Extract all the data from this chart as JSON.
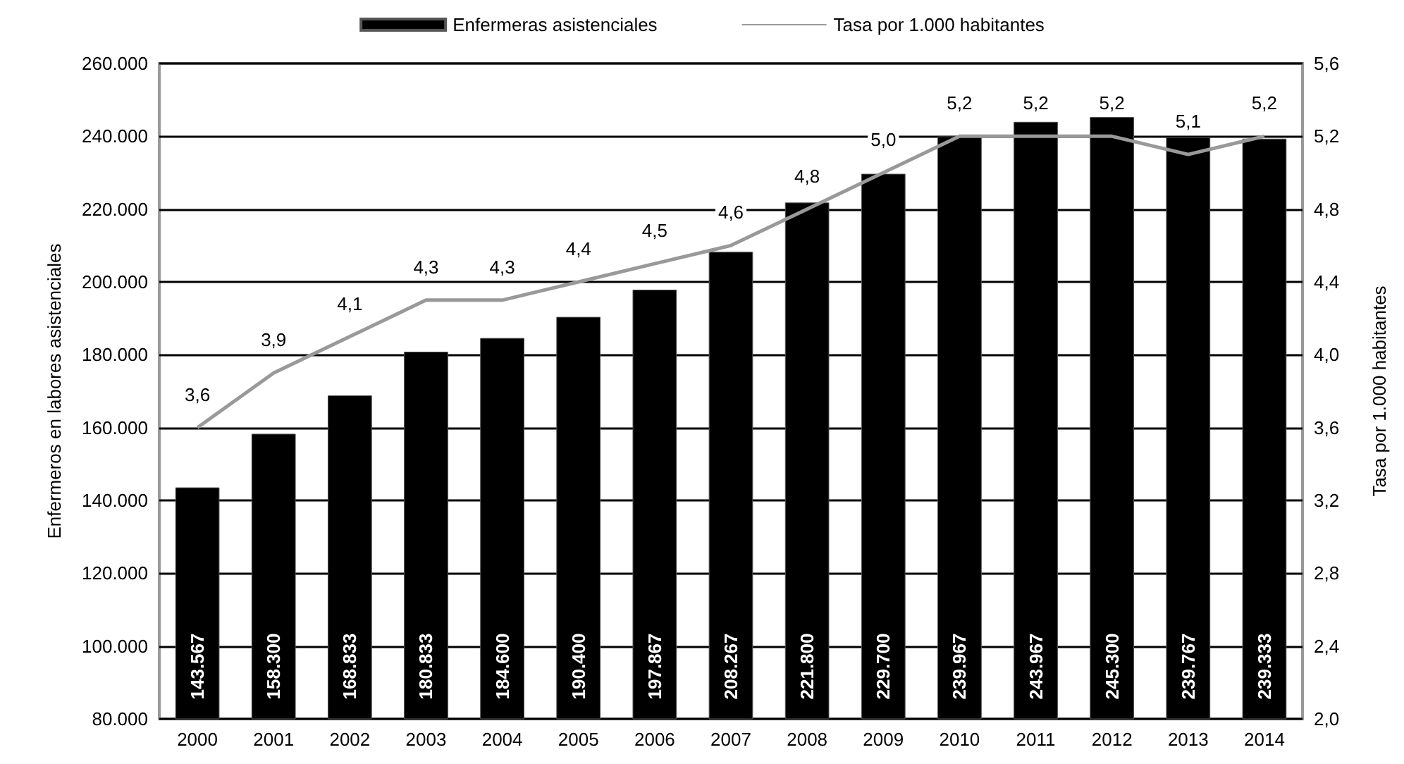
{
  "chart_data": {
    "type": "bar",
    "categories": [
      "2000",
      "2001",
      "2002",
      "2003",
      "2004",
      "2005",
      "2006",
      "2007",
      "2008",
      "2009",
      "2010",
      "2011",
      "2012",
      "2013",
      "2014"
    ],
    "ylabel": "Enfermeros en labores asistenciales",
    "y2label": "Tasa por 1.000 habitantes",
    "series": [
      {
        "name": "Enfermeras asistenciales",
        "color": "#000000",
        "values": [
          143567,
          158300,
          168833,
          180833,
          184600,
          190400,
          197867,
          208267,
          221800,
          229700,
          239967,
          243967,
          245300,
          239767,
          239333
        ],
        "value_labels": [
          "143.567",
          "158.300",
          "168.833",
          "180.833",
          "184.600",
          "190.400",
          "197.867",
          "208.267",
          "221.800",
          "229.700",
          "239.967",
          "243.967",
          "245.300",
          "239.767",
          "239.333"
        ]
      },
      {
        "name": "Tasa por 1.000 habitantes",
        "type": "line",
        "axis": "y2",
        "color": "#999999",
        "values": [
          3.6,
          3.9,
          4.1,
          4.3,
          4.3,
          4.4,
          4.5,
          4.6,
          4.8,
          5.0,
          5.2,
          5.2,
          5.2,
          5.1,
          5.2
        ],
        "value_labels": [
          "3,6",
          "3,9",
          "4,1",
          "4,3",
          "4,3",
          "4,4",
          "4,5",
          "4,6",
          "4,8",
          "5,0",
          "5,2",
          "5,2",
          "5,2",
          "5,1",
          "5,2"
        ]
      }
    ],
    "ylim": [
      80000,
      260000
    ],
    "yticks": [
      {
        "value": 80000,
        "label": "80.000"
      },
      {
        "value": 100000,
        "label": "100.000"
      },
      {
        "value": 120000,
        "label": "120.000"
      },
      {
        "value": 140000,
        "label": "140.000"
      },
      {
        "value": 160000,
        "label": "160.000"
      },
      {
        "value": 180000,
        "label": "180.000"
      },
      {
        "value": 200000,
        "label": "200.000"
      },
      {
        "value": 220000,
        "label": "220.000"
      },
      {
        "value": 240000,
        "label": "240.000"
      },
      {
        "value": 260000,
        "label": "260.000"
      }
    ],
    "y2lim": [
      2.0,
      5.6
    ],
    "y2ticks": [
      {
        "value": 2.0,
        "label": "2,0"
      },
      {
        "value": 2.4,
        "label": "2,4"
      },
      {
        "value": 2.8,
        "label": "2,8"
      },
      {
        "value": 3.2,
        "label": "3,2"
      },
      {
        "value": 3.6,
        "label": "3,6"
      },
      {
        "value": 4.0,
        "label": "4,0"
      },
      {
        "value": 4.4,
        "label": "4,4"
      },
      {
        "value": 4.8,
        "label": "4,8"
      },
      {
        "value": 5.2,
        "label": "5,2"
      },
      {
        "value": 5.6,
        "label": "5,6"
      }
    ],
    "grid": "y",
    "legend": "top",
    "marker": "none",
    "line_style": "solid"
  }
}
